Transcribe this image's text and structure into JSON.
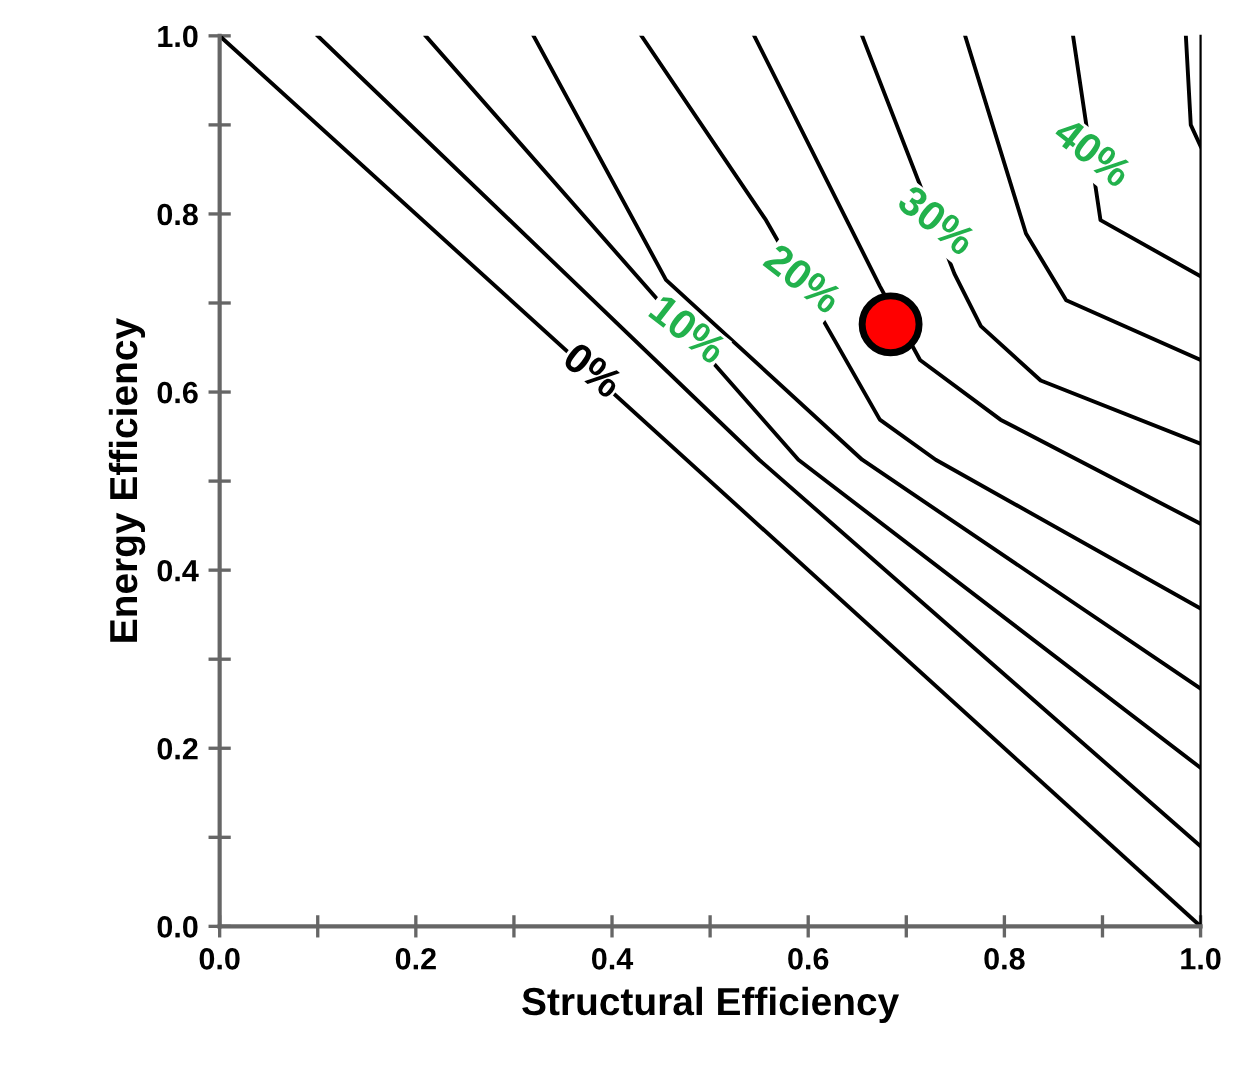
{
  "chart_data": {
    "type": "line",
    "xlabel": "Structural Efficiency",
    "ylabel": "Energy Efficiency",
    "xlim": [
      0.0,
      1.0
    ],
    "ylim": [
      0.0,
      1.0
    ],
    "xticks": [
      {
        "value": 0.0,
        "label": "0.0"
      },
      {
        "value": 0.1,
        "label": null
      },
      {
        "value": 0.2,
        "label": "0.2"
      },
      {
        "value": 0.3,
        "label": null
      },
      {
        "value": 0.4,
        "label": "0.4"
      },
      {
        "value": 0.5,
        "label": null
      },
      {
        "value": 0.6,
        "label": "0.6"
      },
      {
        "value": 0.7,
        "label": null
      },
      {
        "value": 0.8,
        "label": "0.8"
      },
      {
        "value": 0.9,
        "label": null
      },
      {
        "value": 1.0,
        "label": "1.0"
      }
    ],
    "yticks": [
      {
        "value": 0.0,
        "label": "0.0"
      },
      {
        "value": 0.1,
        "label": null
      },
      {
        "value": 0.2,
        "label": "0.2"
      },
      {
        "value": 0.3,
        "label": null
      },
      {
        "value": 0.4,
        "label": "0.4"
      },
      {
        "value": 0.5,
        "label": null
      },
      {
        "value": 0.6,
        "label": "0.6"
      },
      {
        "value": 0.7,
        "label": null
      },
      {
        "value": 0.8,
        "label": "0.8"
      },
      {
        "value": 0.9,
        "label": null
      },
      {
        "value": 1.0,
        "label": "1.0"
      }
    ],
    "grid": false,
    "legend": false,
    "marker": "none",
    "line_style": "solid",
    "series": [
      {
        "name": "0%",
        "color": "#000000",
        "x": [
          0.0,
          1.0
        ],
        "values": [
          1.0,
          0.0
        ]
      },
      {
        "color": "#000000",
        "x": [
          0.1,
          0.55,
          1.0
        ],
        "values": [
          1.0,
          0.524,
          0.09
        ]
      },
      {
        "name": "10%",
        "color": "#000000",
        "x": [
          0.21,
          0.59,
          1.0
        ],
        "values": [
          1.0,
          0.524,
          0.178
        ]
      },
      {
        "color": "#000000",
        "x": [
          0.32,
          0.455,
          0.655,
          1.0
        ],
        "values": [
          1.0,
          0.726,
          0.524,
          0.267
        ]
      },
      {
        "name": "20%",
        "color": "#000000",
        "x": [
          0.43,
          0.557,
          0.627,
          0.673,
          0.73,
          1.0
        ],
        "values": [
          1.0,
          0.793,
          0.658,
          0.569,
          0.524,
          0.357
        ]
      },
      {
        "color": "#000000",
        "x": [
          0.545,
          0.673,
          0.714,
          0.796,
          1.0
        ],
        "values": [
          1.0,
          0.719,
          0.636,
          0.569,
          0.452
        ]
      },
      {
        "name": "30%",
        "color": "#000000",
        "x": [
          0.655,
          0.749,
          0.776,
          0.837,
          1.0
        ],
        "values": [
          1.0,
          0.733,
          0.674,
          0.613,
          0.542
        ]
      },
      {
        "color": "#000000",
        "x": [
          0.76,
          0.822,
          0.863,
          1.0
        ],
        "values": [
          1.0,
          0.778,
          0.703,
          0.636
        ]
      },
      {
        "name": "40%",
        "color": "#000000",
        "x": [
          0.87,
          0.898,
          1.0
        ],
        "values": [
          1.0,
          0.793,
          0.73
        ]
      },
      {
        "color": "#000000",
        "x": [
          0.985,
          0.99,
          1.0
        ],
        "values": [
          1.0,
          0.9,
          0.876
        ]
      },
      {
        "type": "scatter",
        "marker": "circle",
        "color": "#ff0000",
        "x": [
          0.684
        ],
        "values": [
          0.676
        ]
      }
    ]
  }
}
